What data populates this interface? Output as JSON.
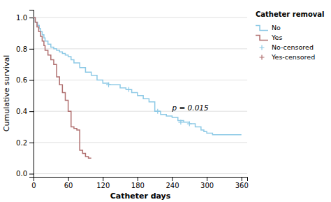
{
  "chart_data": {
    "type": "step",
    "xlabel": "Catheter days",
    "ylabel": "Cumulative survival",
    "xlim": [
      0,
      370
    ],
    "ylim": [
      -0.02,
      1.05
    ],
    "xticks": [
      0,
      60,
      120,
      180,
      240,
      300,
      360
    ],
    "yticks": [
      {
        "value": 0.0,
        "label": "0.0"
      },
      0.2,
      0.4,
      0.6,
      0.8,
      {
        "value": 1.0,
        "label": "1.0"
      }
    ],
    "grid": "y",
    "legend": "upper right",
    "legend_title": "Catheter removal",
    "annotations": [
      {
        "text": "p = 0.015",
        "x": 240,
        "y": 0.42
      }
    ],
    "series": [
      {
        "name": "No",
        "type": "step",
        "color": "#8ECAE6",
        "x": [
          0,
          3,
          7,
          10,
          12,
          15,
          18,
          20,
          25,
          30,
          35,
          40,
          45,
          50,
          55,
          60,
          65,
          70,
          80,
          90,
          100,
          110,
          120,
          130,
          150,
          160,
          170,
          180,
          190,
          200,
          210,
          220,
          230,
          240,
          250,
          260,
          270,
          280,
          290,
          295,
          300,
          310,
          320,
          330,
          340,
          350,
          360
        ],
        "values": [
          1.0,
          0.97,
          0.95,
          0.93,
          0.91,
          0.89,
          0.87,
          0.85,
          0.83,
          0.81,
          0.8,
          0.79,
          0.78,
          0.77,
          0.76,
          0.75,
          0.73,
          0.71,
          0.68,
          0.65,
          0.63,
          0.6,
          0.58,
          0.57,
          0.55,
          0.54,
          0.52,
          0.5,
          0.48,
          0.46,
          0.4,
          0.38,
          0.37,
          0.36,
          0.34,
          0.33,
          0.32,
          0.3,
          0.28,
          0.27,
          0.26,
          0.25,
          0.25,
          0.25,
          0.25,
          0.25,
          0.25
        ]
      },
      {
        "name": "Yes",
        "type": "step",
        "color": "#B07070",
        "x": [
          0,
          3,
          6,
          9,
          12,
          15,
          18,
          20,
          25,
          30,
          35,
          40,
          45,
          50,
          55,
          60,
          65,
          70,
          75,
          80,
          85,
          90,
          95,
          100
        ],
        "values": [
          1.0,
          0.97,
          0.94,
          0.91,
          0.88,
          0.85,
          0.82,
          0.79,
          0.76,
          0.73,
          0.7,
          0.62,
          0.57,
          0.52,
          0.47,
          0.4,
          0.3,
          0.29,
          0.28,
          0.15,
          0.13,
          0.11,
          0.1,
          0.1
        ]
      },
      {
        "name": "No-censored",
        "type": "scatter",
        "marker": "+",
        "color": "#8ECAE6",
        "x": [
          130,
          165,
          215,
          255,
          270
        ],
        "values": [
          0.57,
          0.54,
          0.4,
          0.33,
          0.32
        ]
      },
      {
        "name": "Yes-censored",
        "type": "scatter",
        "marker": "+",
        "color": "#B07070",
        "x": [],
        "values": []
      }
    ]
  }
}
